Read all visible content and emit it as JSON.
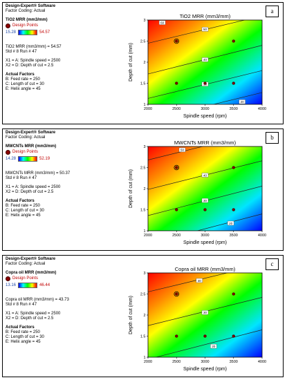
{
  "x_axis_label": "Spindle speed  (rpm)",
  "y_axis_label": "Depth of cut  (mm)",
  "panels": [
    {
      "tag": "a",
      "software": "Design-Expert® Software",
      "factor_coding": "Factor Coding: Actual",
      "response": "TiO2 MRR (mm3/mm)",
      "design_points_label": "Design Points",
      "color_low": "15.28",
      "color_high": "54.57",
      "predicted": "TiO2 MRR (mm3/mm) = 54.57",
      "std_run": "Std # 8 Run # 47",
      "x1": "X1 = A: Spindle speed = 2500",
      "x2": "X2 = D: Depth of cut = 2.5",
      "actual_factors": "Actual Factors",
      "f_b": "B: Feed rate = 250",
      "f_c": "C: Length of cut = 30",
      "f_e": "E: Helix angle = 45"
    },
    {
      "tag": "b",
      "software": "Design-Expert® Software",
      "factor_coding": "Factor Coding: Actual",
      "response": "MWCNTs MRR (mm3/mm)",
      "design_points_label": "Design Points",
      "color_low": "14.28",
      "color_high": "52.19",
      "predicted": "MWCNTs MRR (mm3/mm) = 50.37",
      "std_run": "Std # 8 Run # 47",
      "x1": "X1 = A: Spindle speed = 2500",
      "x2": "X2 = D: Depth of cut = 2.5",
      "actual_factors": "Actual Factors",
      "f_b": "B: Feed rate = 250",
      "f_c": "C: Length of cut = 30",
      "f_e": "E: Helix angle = 45"
    },
    {
      "tag": "c",
      "software": "Design-Expert® Software",
      "factor_coding": "Factor Coding: Actual",
      "response": "Copra oil MRR (mm3/mm)",
      "design_points_label": "Design Points",
      "color_low": "13.16",
      "color_high": "46.44",
      "predicted": "Copra oil MRR (mm3/mm) = 43.73",
      "std_run": "Std # 8 Run # 47",
      "x1": "X1 = A: Spindle speed = 2500",
      "x2": "X2 = D: Depth of cut = 2.5",
      "actual_factors": "Actual Factors",
      "f_b": "B: Feed rate = 250",
      "f_c": "C: Length of cut = 30",
      "f_e": "E: Helix angle = 45"
    }
  ],
  "chart_data": [
    {
      "type": "heatmap",
      "title": "TiO2  MRR (mm3/mm)",
      "xlabel": "Spindle speed  (rpm)",
      "ylabel": "Depth of cut  (mm)",
      "xlim": [
        2000,
        4000
      ],
      "ylim": [
        1,
        3
      ],
      "x_ticks": [
        "2000",
        "2500",
        "3000",
        "3500",
        "4000"
      ],
      "y_ticks": [
        "1",
        "1.5",
        "2",
        "2.5",
        "3"
      ],
      "contours": [
        {
          "label": "50",
          "label_at": [
            3000,
            2.78
          ],
          "points": [
            [
              2000,
              2.45
            ],
            [
              4000,
              3.1
            ]
          ]
        },
        {
          "label": "40",
          "label_at": [
            3000,
            2.06
          ],
          "points": [
            [
              2000,
              1.72
            ],
            [
              4000,
              2.4
            ]
          ]
        },
        {
          "label": "30",
          "label_at": [
            3000,
            1.48
          ],
          "points": [
            [
              2000,
              1.14
            ],
            [
              4000,
              1.8
            ]
          ]
        },
        {
          "label": "20",
          "label_at": [
            3650,
            1.06
          ],
          "points": [
            [
              2700,
              0.85
            ],
            [
              4000,
              1.28
            ]
          ]
        }
      ],
      "corner_label": {
        "label": "60",
        "label_at": [
          2250,
          2.94
        ]
      },
      "design_points": [
        [
          2500,
          2.5
        ],
        [
          3500,
          2.5
        ],
        [
          2500,
          1.5
        ],
        [
          3500,
          1.5
        ],
        [
          3000,
          1.5
        ]
      ],
      "highlight_point": [
        2500,
        2.5
      ],
      "color_range": [
        15.28,
        54.57
      ]
    },
    {
      "type": "heatmap",
      "title": "MWCNTs  MRR (mm3/mm)",
      "xlabel": "Spindle speed  (rpm)",
      "ylabel": "Depth of cut  (mm)",
      "xlim": [
        2000,
        4000
      ],
      "ylim": [
        1,
        3
      ],
      "x_ticks": [
        "2000",
        "2500",
        "3000",
        "3500",
        "4000"
      ],
      "y_ticks": [
        "1",
        "1.5",
        "2",
        "2.5",
        "3"
      ],
      "contours": [
        {
          "label": "50",
          "label_at": [
            2600,
            2.92
          ],
          "points": [
            [
              2000,
              2.68
            ],
            [
              4000,
              3.35
            ]
          ]
        },
        {
          "label": "40",
          "label_at": [
            3000,
            2.32
          ],
          "points": [
            [
              2000,
              1.98
            ],
            [
              4000,
              2.66
            ]
          ]
        },
        {
          "label": "30",
          "label_at": [
            3000,
            1.72
          ],
          "points": [
            [
              2000,
              1.36
            ],
            [
              4000,
              2.06
            ]
          ]
        },
        {
          "label": "20",
          "label_at": [
            3450,
            1.18
          ],
          "points": [
            [
              2300,
              0.8
            ],
            [
              4000,
              1.4
            ]
          ]
        }
      ],
      "design_points": [
        [
          2500,
          2.5
        ],
        [
          3500,
          2.5
        ],
        [
          2500,
          1.5
        ],
        [
          3500,
          1.5
        ],
        [
          3000,
          1.5
        ]
      ],
      "highlight_point": [
        2500,
        2.5
      ],
      "color_range": [
        14.28,
        52.19
      ]
    },
    {
      "type": "heatmap",
      "title": "Copra oil  MRR (mm3/mm)",
      "xlabel": "Spindle speed  (rpm)",
      "ylabel": "Depth of cut  (mm)",
      "xlim": [
        2000,
        4000
      ],
      "ylim": [
        1,
        3
      ],
      "x_ticks": [
        "2000",
        "2500",
        "3000",
        "3500",
        "4000"
      ],
      "y_ticks": [
        "1",
        "1.5",
        "2",
        "2.5",
        "3"
      ],
      "contours": [
        {
          "label": "40",
          "label_at": [
            2900,
            2.82
          ],
          "points": [
            [
              2000,
              2.55
            ],
            [
              4000,
              3.2
            ]
          ]
        },
        {
          "label": "30",
          "label_at": [
            3000,
            2.06
          ],
          "points": [
            [
              2000,
              1.75
            ],
            [
              4000,
              2.42
            ]
          ]
        },
        {
          "label": "20",
          "label_at": [
            3150,
            1.26
          ],
          "points": [
            [
              2000,
              0.95
            ],
            [
              4000,
              1.65
            ]
          ]
        }
      ],
      "design_points": [
        [
          2500,
          2.5
        ],
        [
          3500,
          2.5
        ],
        [
          2500,
          1.5
        ],
        [
          3500,
          1.5
        ],
        [
          3000,
          1.5
        ]
      ],
      "highlight_point": [
        2500,
        2.5
      ],
      "color_range": [
        13.16,
        46.44
      ]
    }
  ]
}
